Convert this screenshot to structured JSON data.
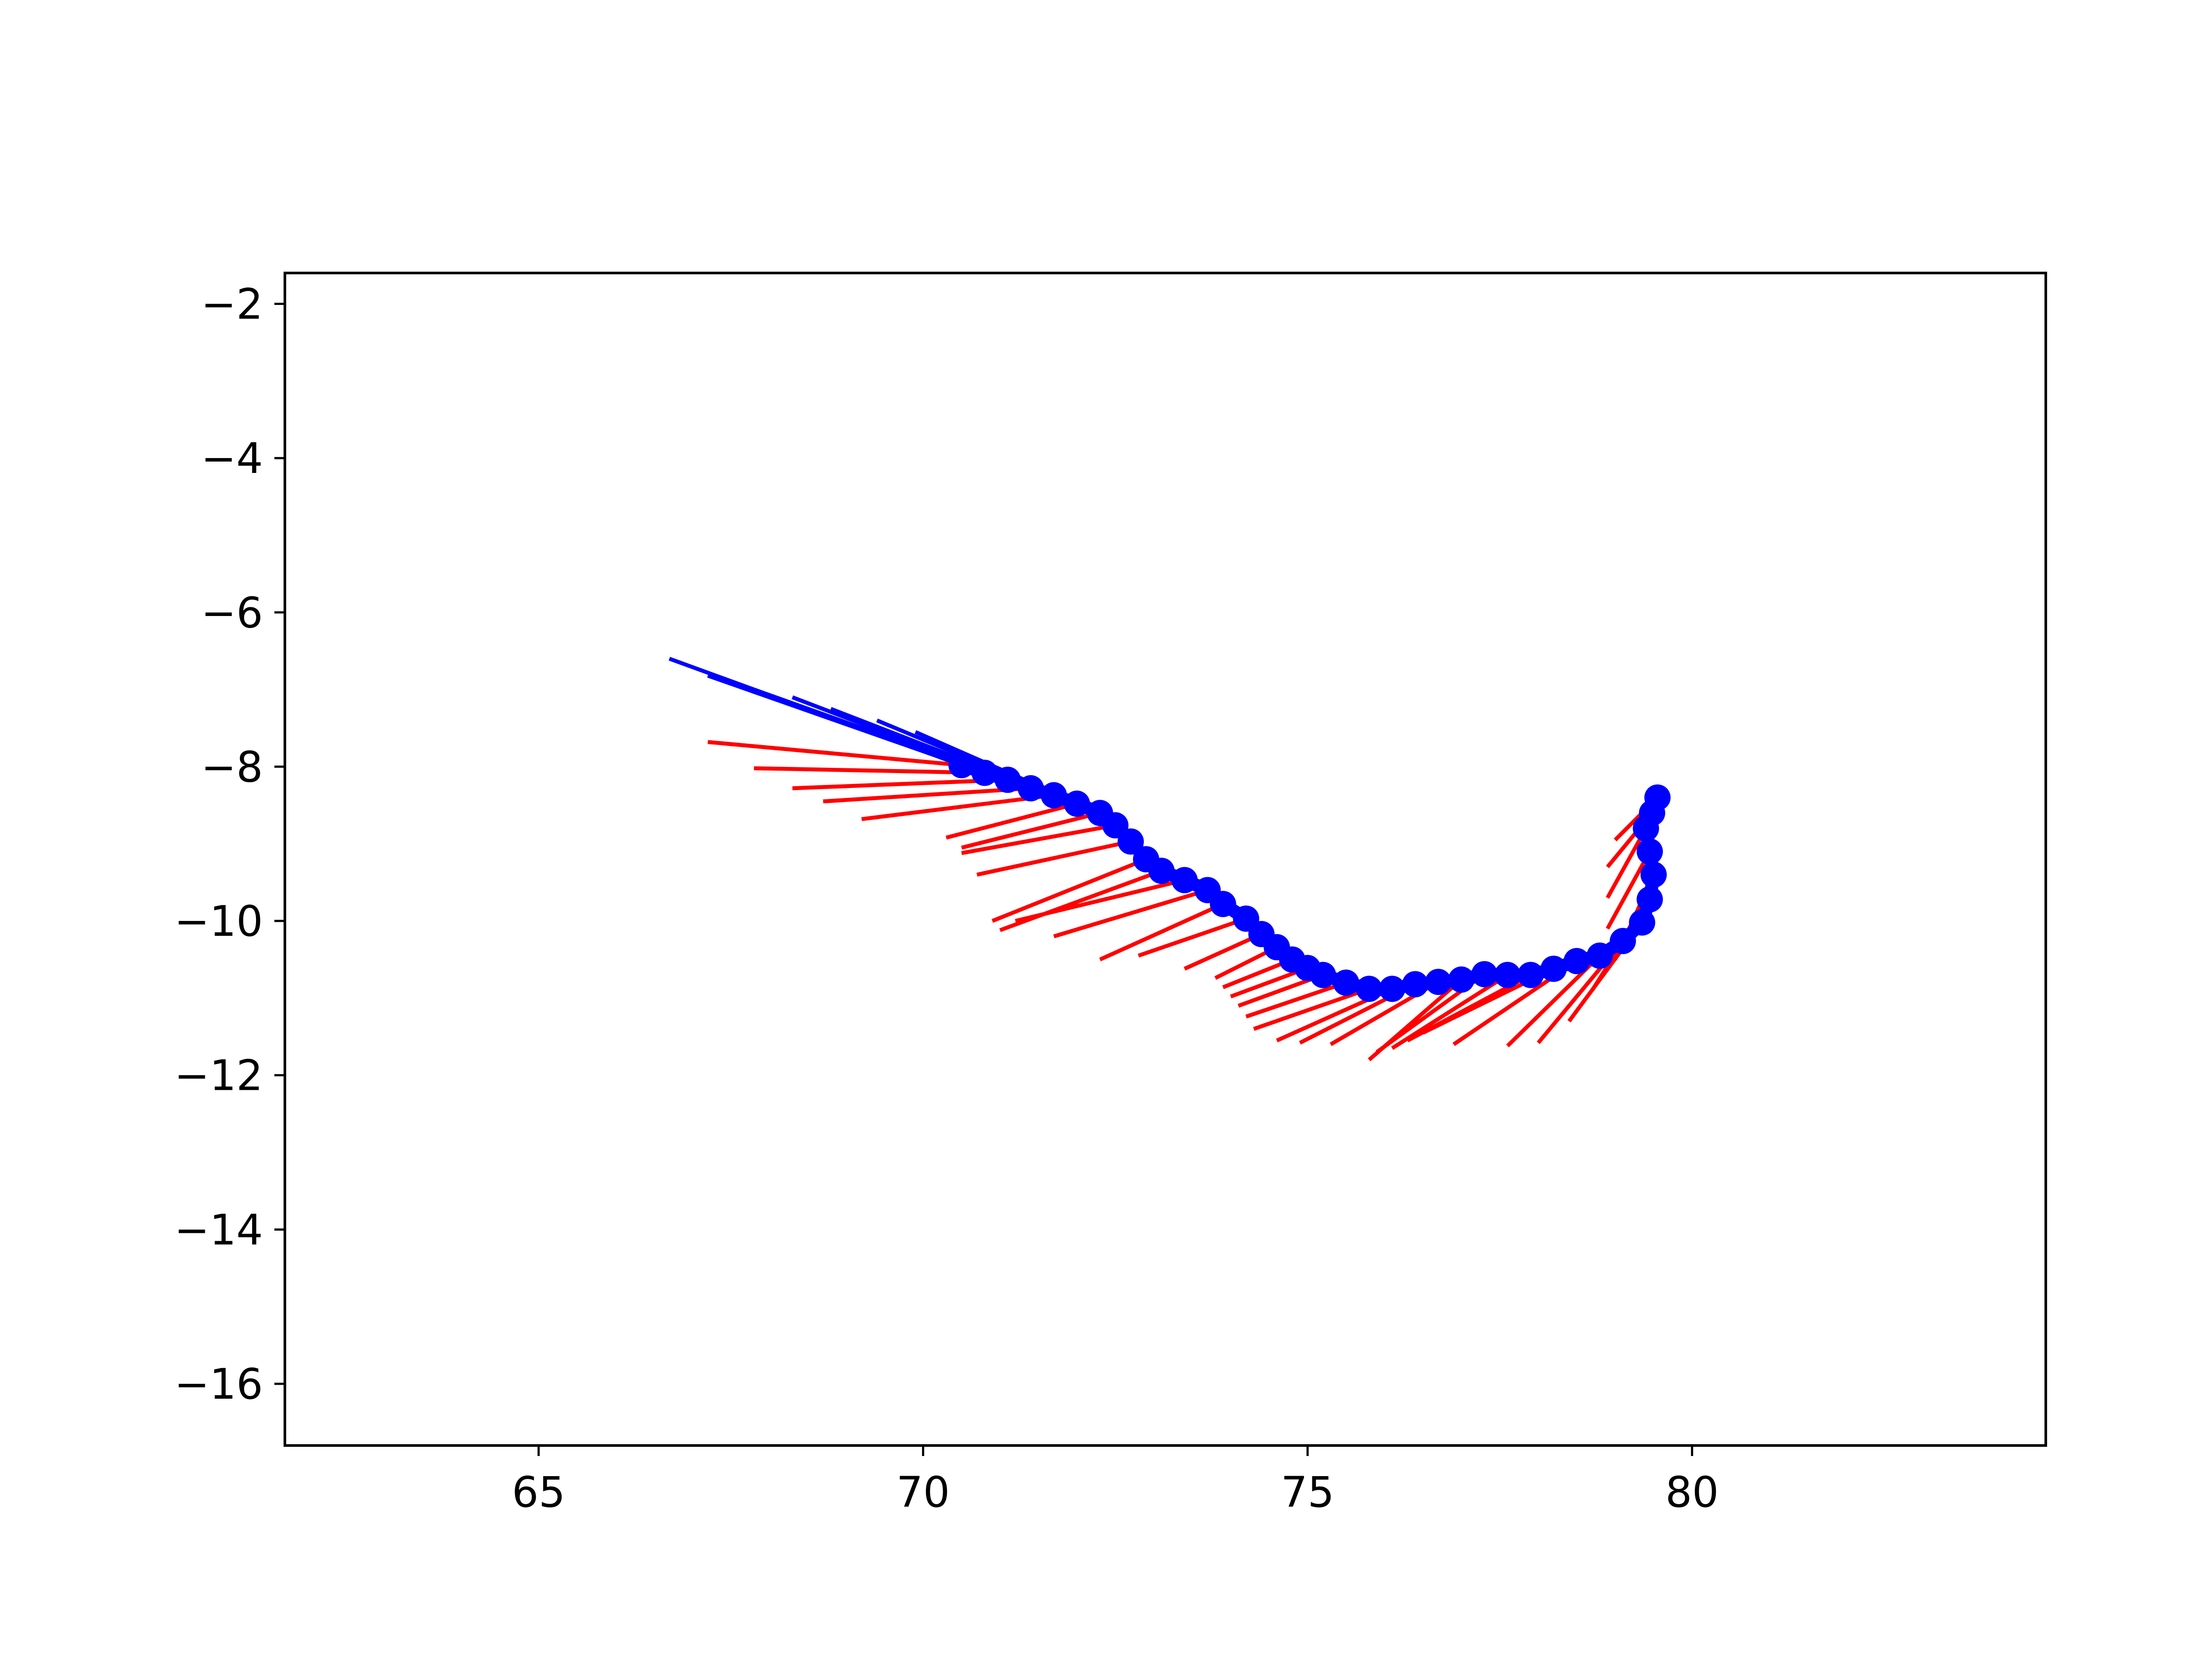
{
  "chart_data": {
    "type": "scatter",
    "title": "",
    "xlabel": "",
    "ylabel": "",
    "xlim": [
      61.7,
      84.6
    ],
    "ylim": [
      -16.8,
      -1.6
    ],
    "grid": false,
    "legend": "none",
    "x_ticks": [
      65,
      70,
      75,
      80
    ],
    "y_ticks": [
      -2,
      -4,
      -6,
      -8,
      -10,
      -12,
      -14,
      -16
    ],
    "x_tick_labels": [
      "65",
      "70",
      "75",
      "80"
    ],
    "y_tick_labels": [
      "−2",
      "−4",
      "−6",
      "−8",
      "−10",
      "−12",
      "−14",
      "−16"
    ],
    "colors": {
      "path": "#0000ff",
      "vector": "#ff0000",
      "axes": "#000000"
    },
    "series": [
      {
        "role": "path-points",
        "points": [
          [
            70.5,
            -7.98
          ],
          [
            70.8,
            -8.08
          ],
          [
            71.1,
            -8.17
          ],
          [
            71.4,
            -8.28
          ],
          [
            71.7,
            -8.37
          ],
          [
            72.0,
            -8.48
          ],
          [
            72.3,
            -8.6
          ],
          [
            72.5,
            -8.76
          ],
          [
            72.7,
            -8.97
          ],
          [
            72.9,
            -9.2
          ],
          [
            73.1,
            -9.35
          ],
          [
            73.4,
            -9.47
          ],
          [
            73.7,
            -9.6
          ],
          [
            73.9,
            -9.78
          ],
          [
            74.2,
            -9.97
          ],
          [
            74.4,
            -10.17
          ],
          [
            74.6,
            -10.34
          ],
          [
            74.8,
            -10.5
          ],
          [
            75.0,
            -10.61
          ],
          [
            75.2,
            -10.7
          ],
          [
            75.5,
            -10.8
          ],
          [
            75.8,
            -10.88
          ],
          [
            76.1,
            -10.88
          ],
          [
            76.4,
            -10.82
          ],
          [
            76.7,
            -10.79
          ],
          [
            77.0,
            -10.76
          ],
          [
            77.3,
            -10.69
          ],
          [
            77.6,
            -10.7
          ],
          [
            77.9,
            -10.7
          ],
          [
            78.2,
            -10.62
          ],
          [
            78.5,
            -10.52
          ],
          [
            78.8,
            -10.45
          ],
          [
            79.1,
            -10.26
          ],
          [
            79.35,
            -10.02
          ],
          [
            79.45,
            -9.72
          ],
          [
            79.5,
            -9.4
          ],
          [
            79.45,
            -9.1
          ],
          [
            79.4,
            -8.8
          ],
          [
            79.48,
            -8.6
          ],
          [
            79.55,
            -8.4
          ]
        ]
      },
      {
        "role": "heading-lines",
        "segments": [
          [
            [
              70.5,
              -7.98
            ],
            [
              66.7,
              -6.6
            ]
          ],
          [
            [
              70.8,
              -8.08
            ],
            [
              67.2,
              -6.82
            ]
          ],
          [
            [
              71.1,
              -8.17
            ],
            [
              67.8,
              -7.0
            ]
          ],
          [
            [
              71.4,
              -8.28
            ],
            [
              68.3,
              -7.1
            ]
          ],
          [
            [
              71.7,
              -8.37
            ],
            [
              68.8,
              -7.25
            ]
          ],
          [
            [
              72.0,
              -8.48
            ],
            [
              69.4,
              -7.4
            ]
          ],
          [
            [
              72.3,
              -8.6
            ],
            [
              69.9,
              -7.55
            ]
          ],
          [
            [
              72.5,
              -8.76
            ],
            [
              70.2,
              -7.72
            ]
          ]
        ]
      },
      {
        "role": "orientation-vectors",
        "segments": [
          [
            [
              70.5,
              -7.98
            ],
            [
              67.2,
              -7.68
            ]
          ],
          [
            [
              70.8,
              -8.08
            ],
            [
              67.8,
              -8.02
            ]
          ],
          [
            [
              71.1,
              -8.17
            ],
            [
              68.3,
              -8.28
            ]
          ],
          [
            [
              71.4,
              -8.28
            ],
            [
              68.7,
              -8.45
            ]
          ],
          [
            [
              71.7,
              -8.37
            ],
            [
              69.2,
              -8.68
            ]
          ],
          [
            [
              72.0,
              -8.48
            ],
            [
              70.3,
              -8.92
            ]
          ],
          [
            [
              72.3,
              -8.6
            ],
            [
              70.5,
              -9.05
            ]
          ],
          [
            [
              72.5,
              -8.76
            ],
            [
              70.5,
              -9.12
            ]
          ],
          [
            [
              72.7,
              -8.97
            ],
            [
              70.7,
              -9.4
            ]
          ],
          [
            [
              72.9,
              -9.2
            ],
            [
              70.9,
              -10.0
            ]
          ],
          [
            [
              73.1,
              -9.35
            ],
            [
              71.0,
              -10.12
            ]
          ],
          [
            [
              73.4,
              -9.47
            ],
            [
              71.2,
              -10.0
            ]
          ],
          [
            [
              73.7,
              -9.6
            ],
            [
              71.7,
              -10.2
            ]
          ],
          [
            [
              73.9,
              -9.78
            ],
            [
              72.3,
              -10.5
            ]
          ],
          [
            [
              74.2,
              -9.97
            ],
            [
              72.8,
              -10.45
            ]
          ],
          [
            [
              74.4,
              -10.17
            ],
            [
              73.4,
              -10.62
            ]
          ],
          [
            [
              74.6,
              -10.34
            ],
            [
              73.8,
              -10.74
            ]
          ],
          [
            [
              74.8,
              -10.5
            ],
            [
              73.9,
              -10.86
            ]
          ],
          [
            [
              75.0,
              -10.61
            ],
            [
              74.0,
              -10.98
            ]
          ],
          [
            [
              75.2,
              -10.7
            ],
            [
              74.1,
              -11.1
            ]
          ],
          [
            [
              75.5,
              -10.8
            ],
            [
              74.2,
              -11.24
            ]
          ],
          [
            [
              75.8,
              -10.88
            ],
            [
              74.3,
              -11.4
            ]
          ],
          [
            [
              76.1,
              -10.88
            ],
            [
              74.6,
              -11.55
            ]
          ],
          [
            [
              76.4,
              -10.82
            ],
            [
              74.9,
              -11.58
            ]
          ],
          [
            [
              76.7,
              -10.79
            ],
            [
              75.3,
              -11.6
            ]
          ],
          [
            [
              77.0,
              -10.76
            ],
            [
              75.8,
              -11.8
            ]
          ],
          [
            [
              77.3,
              -10.69
            ],
            [
              75.9,
              -11.7
            ]
          ],
          [
            [
              77.6,
              -10.7
            ],
            [
              76.1,
              -11.65
            ]
          ],
          [
            [
              77.9,
              -10.7
            ],
            [
              76.3,
              -11.55
            ]
          ],
          [
            [
              78.2,
              -10.62
            ],
            [
              76.5,
              -11.45
            ]
          ],
          [
            [
              78.5,
              -10.52
            ],
            [
              76.9,
              -11.6
            ]
          ],
          [
            [
              78.8,
              -10.45
            ],
            [
              77.6,
              -11.62
            ]
          ],
          [
            [
              79.1,
              -10.26
            ],
            [
              78.0,
              -11.58
            ]
          ],
          [
            [
              79.35,
              -10.02
            ],
            [
              78.4,
              -11.3
            ]
          ],
          [
            [
              79.45,
              -9.72
            ],
            [
              78.7,
              -10.9
            ]
          ],
          [
            [
              79.5,
              -9.4
            ],
            [
              79.0,
              -10.5
            ]
          ],
          [
            [
              79.45,
              -9.1
            ],
            [
              78.9,
              -10.1
            ]
          ],
          [
            [
              79.4,
              -8.8
            ],
            [
              78.9,
              -9.7
            ]
          ],
          [
            [
              79.48,
              -8.6
            ],
            [
              78.9,
              -9.3
            ]
          ],
          [
            [
              79.55,
              -8.4
            ],
            [
              79.0,
              -8.95
            ]
          ]
        ]
      }
    ]
  }
}
